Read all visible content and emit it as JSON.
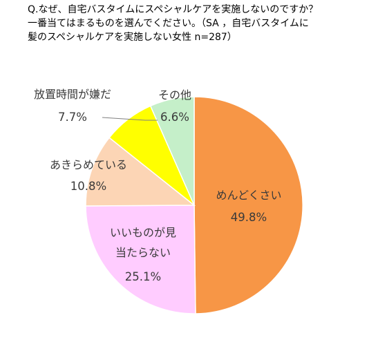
{
  "chart_data": {
    "type": "pie",
    "title_lines": [
      "Q.なぜ、自宅バスタイムにスペシャルケアを実施しないのですか？",
      "一番当てはまるものを選んでください。（SA ，自宅バスタイムに",
      "髪のスペシャルケアを実施しない女性  n=287）"
    ],
    "start_angle_deg": 0,
    "direction": "clockwise",
    "slices": [
      {
        "label_lines": [
          "めんどくさい"
        ],
        "value_text": "49.8%",
        "value": 49.8,
        "color": "#F79646"
      },
      {
        "label_lines": [
          "いいものが見",
          "当たらない"
        ],
        "value_text": "25.1%",
        "value": 25.1,
        "color": "#FFCCFF"
      },
      {
        "label_lines": [
          "あきらめている"
        ],
        "value_text": "10.8%",
        "value": 10.8,
        "color": "#FCD5B5"
      },
      {
        "label_lines": [
          "放置時間が嫌だ"
        ],
        "value_text": "7.7%",
        "value": 7.7,
        "color": "#FFFF00"
      },
      {
        "label_lines": [
          "その他"
        ],
        "value_text": "6.6%",
        "value": 6.6,
        "color": "#C5EFC9"
      }
    ],
    "outline_color": "#FFFFFF",
    "leader_color": "#7F7F7F"
  }
}
